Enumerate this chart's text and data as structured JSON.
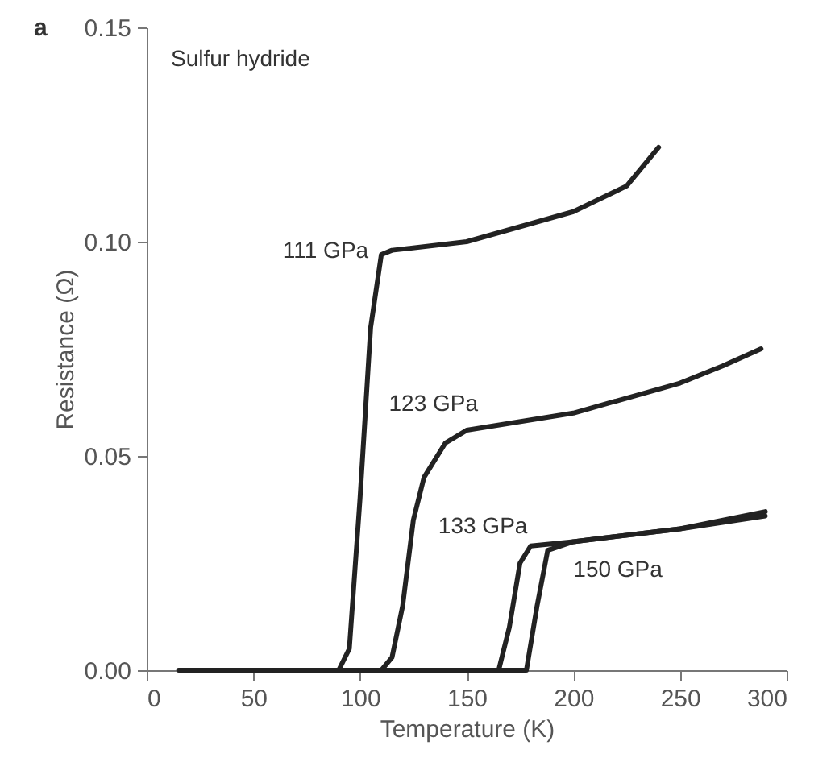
{
  "chart_data": {
    "type": "line",
    "xlabel": "Temperature (K)",
    "ylabel": "Resistance (Ω)",
    "annotations": [
      "a",
      "Sulfur hydride"
    ],
    "xlim": [
      0,
      300
    ],
    "xticks": [
      0,
      50,
      100,
      150,
      200,
      250,
      300
    ],
    "ylim": [
      0,
      0.15
    ],
    "yticks": [
      {
        "value": 0,
        "label": "0.00"
      },
      {
        "value": 0.05,
        "label": "0.05"
      },
      {
        "value": 0.1,
        "label": "0.10"
      },
      {
        "value": 0.15,
        "label": "0.15"
      }
    ],
    "grid": false,
    "marker": "none",
    "line_style": "solid",
    "series": [
      {
        "name": "111 GPa",
        "color": "#222222",
        "x": [
          15,
          90,
          95,
          100,
          105,
          110,
          115,
          150,
          200,
          225,
          240
        ],
        "values": [
          0,
          0,
          0.005,
          0.04,
          0.08,
          0.097,
          0.098,
          0.1,
          0.107,
          0.113,
          0.122
        ]
      },
      {
        "name": "123 GPa",
        "color": "#222222",
        "x": [
          110,
          115,
          120,
          125,
          130,
          140,
          150,
          200,
          250,
          270,
          288
        ],
        "values": [
          0,
          0.003,
          0.015,
          0.035,
          0.045,
          0.053,
          0.056,
          0.06,
          0.067,
          0.071,
          0.075
        ]
      },
      {
        "name": "133 GPa",
        "color": "#222222",
        "x": [
          60,
          165,
          170,
          175,
          180,
          200,
          250,
          290
        ],
        "values": [
          0,
          0,
          0.01,
          0.025,
          0.029,
          0.03,
          0.033,
          0.037
        ]
      },
      {
        "name": "150 GPa",
        "color": "#222222",
        "x": [
          100,
          178,
          183,
          188,
          200,
          250,
          290
        ],
        "values": [
          0,
          0,
          0.015,
          0.028,
          0.03,
          0.033,
          0.036
        ]
      }
    ]
  }
}
